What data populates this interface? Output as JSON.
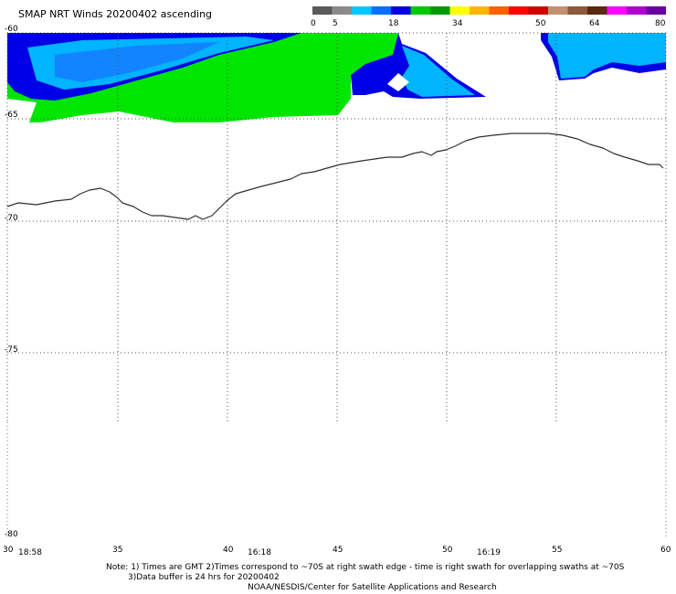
{
  "title": "SMAP NRT Winds 20200402 ascending",
  "colorbar": {
    "segments": [
      {
        "color": "#5a5a5a"
      },
      {
        "color": "#8a8a8a"
      },
      {
        "color": "#00c8ff"
      },
      {
        "color": "#0070ff"
      },
      {
        "color": "#0000e0"
      },
      {
        "color": "#00c800"
      },
      {
        "color": "#009a00"
      },
      {
        "color": "#ffff00"
      },
      {
        "color": "#ffb400"
      },
      {
        "color": "#ff6000"
      },
      {
        "color": "#ff0000"
      },
      {
        "color": "#d00000"
      },
      {
        "color": "#c09070"
      },
      {
        "color": "#8a5a3a"
      },
      {
        "color": "#5a2a10"
      },
      {
        "color": "#ff00ff"
      },
      {
        "color": "#b000d0"
      },
      {
        "color": "#6a00a0"
      }
    ],
    "tick_labels": [
      "0",
      "5",
      "18",
      "34",
      "50",
      "64",
      "80"
    ]
  },
  "axes": {
    "lat_labels": [
      "-60",
      "-65",
      "-70",
      "-75",
      "-80"
    ],
    "lon_labels": [
      "30",
      "35",
      "40",
      "45",
      "50",
      "55",
      "60"
    ],
    "time_labels": [
      "18:58",
      "16:18",
      "16:19"
    ]
  },
  "wind_colors": {
    "green": "#00e600",
    "blue": "#0000e6",
    "light_blue": "#00b4ff",
    "mid_blue": "#1e64ff"
  },
  "notes": {
    "line1": "Note: 1) Times are GMT 2)Times correspond to ~70S at right swath edge - time is right swath for overlapping swaths at ~70S",
    "line2": "3)Data buffer is 24 hrs for 20200402",
    "line3": "NOAA/NESDIS/Center for Satellite Applications and Research"
  }
}
